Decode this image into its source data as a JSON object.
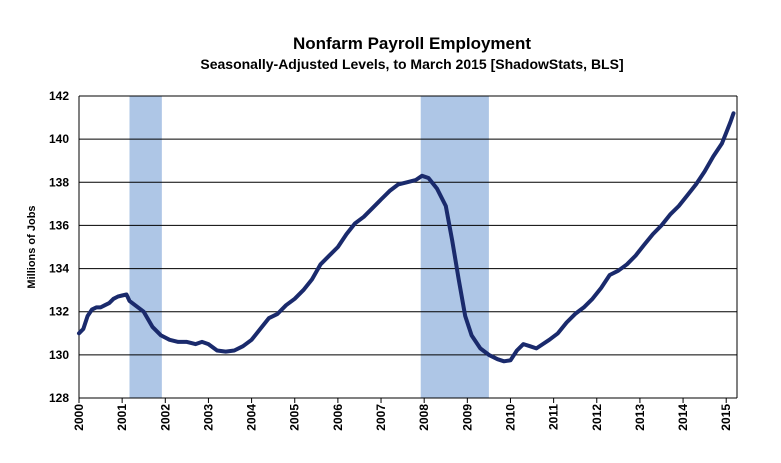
{
  "chart_data": {
    "type": "line",
    "title": "Nonfarm Payroll Employment",
    "subtitle": "Seasonally-Adjusted Levels, to March 2015 [ShadowStats, BLS]",
    "xlabel": "",
    "ylabel": "Millions  of Jobs",
    "xlim": [
      2000,
      2015.25
    ],
    "ylim": [
      128,
      142
    ],
    "y_ticks": [
      128,
      130,
      132,
      134,
      136,
      138,
      140,
      142
    ],
    "x_ticks": [
      "2000",
      "2001",
      "2002",
      "2003",
      "2004",
      "2005",
      "2006",
      "2007",
      "2008",
      "2009",
      "2010",
      "2011",
      "2012",
      "2013",
      "2014",
      "2015"
    ],
    "grid": "horizontal",
    "shaded_regions": [
      {
        "start": 2001.17,
        "end": 2001.92
      },
      {
        "start": 2007.92,
        "end": 2009.5
      }
    ],
    "line_color": "#1a2a6c",
    "shade_color": "#aec6e6",
    "series": [
      {
        "x": [
          2000.0,
          2000.1,
          2000.2,
          2000.3,
          2000.4,
          2000.5,
          2000.6,
          2000.7,
          2000.8,
          2000.9,
          2001.0,
          2001.1,
          2001.17,
          2001.3,
          2001.5,
          2001.7,
          2001.9,
          2002.1,
          2002.3,
          2002.5,
          2002.7,
          2002.85,
          2003.0,
          2003.2,
          2003.4,
          2003.6,
          2003.8,
          2004.0,
          2004.2,
          2004.4,
          2004.6,
          2004.8,
          2005.0,
          2005.2,
          2005.4,
          2005.6,
          2005.8,
          2006.0,
          2006.2,
          2006.4,
          2006.6,
          2006.8,
          2007.0,
          2007.2,
          2007.4,
          2007.6,
          2007.8,
          2007.95,
          2008.1,
          2008.3,
          2008.5,
          2008.65,
          2008.8,
          2008.95,
          2009.1,
          2009.3,
          2009.5,
          2009.7,
          2009.85,
          2010.0,
          2010.15,
          2010.3,
          2010.45,
          2010.6,
          2010.75,
          2010.9,
          2011.1,
          2011.3,
          2011.5,
          2011.7,
          2011.9,
          2012.1,
          2012.3,
          2012.5,
          2012.7,
          2012.9,
          2013.1,
          2013.3,
          2013.5,
          2013.7,
          2013.9,
          2014.1,
          2014.3,
          2014.5,
          2014.7,
          2014.9,
          2015.0,
          2015.1,
          2015.17
        ],
        "y": [
          131.0,
          131.2,
          131.8,
          132.1,
          132.2,
          132.2,
          132.3,
          132.4,
          132.6,
          132.7,
          132.75,
          132.8,
          132.5,
          132.3,
          132.0,
          131.3,
          130.9,
          130.7,
          130.6,
          130.6,
          130.5,
          130.6,
          130.5,
          130.2,
          130.15,
          130.2,
          130.4,
          130.7,
          131.2,
          131.7,
          131.9,
          132.3,
          132.6,
          133.0,
          133.5,
          134.2,
          134.6,
          135.0,
          135.6,
          136.1,
          136.4,
          136.8,
          137.2,
          137.6,
          137.9,
          138.0,
          138.1,
          138.3,
          138.2,
          137.7,
          136.9,
          135.3,
          133.5,
          131.8,
          130.9,
          130.3,
          130.0,
          129.8,
          129.7,
          129.75,
          130.2,
          130.5,
          130.4,
          130.3,
          130.5,
          130.7,
          131.0,
          131.5,
          131.9,
          132.2,
          132.6,
          133.1,
          133.7,
          133.9,
          134.2,
          134.6,
          135.1,
          135.6,
          136.0,
          136.5,
          136.9,
          137.4,
          137.9,
          138.5,
          139.2,
          139.8,
          140.3,
          140.8,
          141.2
        ]
      }
    ]
  }
}
